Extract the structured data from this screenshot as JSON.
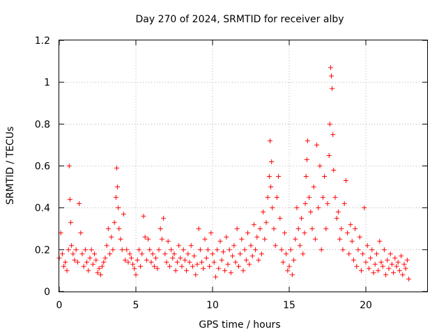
{
  "chart_data": {
    "type": "scatter",
    "title": "Day 270 of 2024, SRMTID for receiver alby",
    "xlabel": "GPS time / hours",
    "ylabel": "SRMTID / TECUs",
    "xlim": [
      0,
      24
    ],
    "ylim": [
      0,
      1.2
    ],
    "xticks": [
      0,
      5,
      10,
      15,
      20
    ],
    "xtick_labels": [
      "0",
      "5",
      "10",
      "15",
      "20"
    ],
    "yticks": [
      0,
      0.2,
      0.4,
      0.6,
      0.8,
      1.0,
      1.2
    ],
    "ytick_labels": [
      "0",
      "0.2",
      "0.4",
      "0.6",
      "0.8",
      "1",
      "1.2"
    ],
    "grid": true,
    "marker": "plus",
    "series": [
      {
        "name": "SRMTID",
        "color": "#ff0000",
        "x": [
          0.0,
          0.1,
          0.2,
          0.3,
          0.4,
          0.5,
          0.6,
          0.65,
          0.7,
          0.75,
          0.8,
          0.9,
          1.0,
          1.1,
          1.2,
          1.3,
          1.4,
          1.5,
          1.6,
          1.7,
          1.8,
          1.9,
          2.0,
          2.1,
          2.2,
          2.3,
          2.4,
          2.5,
          2.6,
          2.7,
          2.8,
          2.9,
          3.0,
          3.1,
          3.2,
          3.3,
          3.4,
          3.5,
          3.6,
          3.7,
          3.75,
          3.8,
          3.85,
          3.9,
          4.0,
          4.1,
          4.2,
          4.3,
          4.4,
          4.5,
          4.6,
          4.7,
          4.8,
          4.9,
          5.0,
          5.1,
          5.2,
          5.3,
          5.4,
          5.5,
          5.6,
          5.7,
          5.8,
          5.9,
          6.0,
          6.1,
          6.2,
          6.3,
          6.4,
          6.5,
          6.6,
          6.7,
          6.8,
          6.9,
          7.0,
          7.1,
          7.2,
          7.3,
          7.4,
          7.5,
          7.6,
          7.7,
          7.8,
          7.9,
          8.0,
          8.1,
          8.2,
          8.3,
          8.4,
          8.5,
          8.6,
          8.7,
          8.8,
          8.9,
          9.0,
          9.1,
          9.2,
          9.3,
          9.4,
          9.5,
          9.6,
          9.7,
          9.8,
          9.9,
          10.0,
          10.1,
          10.2,
          10.3,
          10.4,
          10.5,
          10.6,
          10.7,
          10.8,
          10.9,
          11.0,
          11.1,
          11.2,
          11.3,
          11.4,
          11.5,
          11.6,
          11.7,
          11.8,
          11.9,
          12.0,
          12.1,
          12.2,
          12.3,
          12.4,
          12.5,
          12.6,
          12.7,
          12.8,
          12.9,
          13.0,
          13.1,
          13.2,
          13.3,
          13.4,
          13.5,
          13.6,
          13.7,
          13.75,
          13.8,
          13.85,
          13.9,
          14.0,
          14.1,
          14.2,
          14.3,
          14.4,
          14.5,
          14.6,
          14.7,
          14.8,
          14.9,
          15.0,
          15.1,
          15.2,
          15.3,
          15.4,
          15.5,
          15.6,
          15.7,
          15.8,
          15.9,
          16.0,
          16.05,
          16.1,
          16.15,
          16.2,
          16.3,
          16.4,
          16.5,
          16.6,
          16.7,
          16.8,
          16.9,
          17.0,
          17.1,
          17.2,
          17.3,
          17.4,
          17.5,
          17.6,
          17.65,
          17.7,
          17.75,
          17.8,
          17.85,
          17.9,
          18.0,
          18.1,
          18.2,
          18.3,
          18.4,
          18.5,
          18.6,
          18.7,
          18.8,
          18.9,
          19.0,
          19.1,
          19.2,
          19.3,
          19.4,
          19.5,
          19.6,
          19.7,
          19.8,
          19.9,
          20.0,
          20.1,
          20.2,
          20.3,
          20.4,
          20.5,
          20.6,
          20.7,
          20.8,
          20.9,
          21.0,
          21.1,
          21.2,
          21.3,
          21.4,
          21.5,
          21.6,
          21.7,
          21.8,
          21.9,
          22.0,
          22.1,
          22.2,
          22.3,
          22.4,
          22.5,
          22.6,
          22.7,
          22.8
        ],
        "y": [
          0.16,
          0.28,
          0.18,
          0.12,
          0.14,
          0.1,
          0.2,
          0.6,
          0.44,
          0.33,
          0.22,
          0.18,
          0.15,
          0.2,
          0.14,
          0.42,
          0.28,
          0.18,
          0.12,
          0.2,
          0.14,
          0.1,
          0.16,
          0.2,
          0.13,
          0.18,
          0.15,
          0.09,
          0.11,
          0.08,
          0.12,
          0.14,
          0.16,
          0.22,
          0.3,
          0.18,
          0.26,
          0.2,
          0.33,
          0.45,
          0.59,
          0.5,
          0.4,
          0.3,
          0.25,
          0.2,
          0.37,
          0.15,
          0.2,
          0.14,
          0.18,
          0.16,
          0.13,
          0.11,
          0.08,
          0.15,
          0.2,
          0.12,
          0.18,
          0.36,
          0.26,
          0.15,
          0.25,
          0.2,
          0.14,
          0.18,
          0.12,
          0.16,
          0.11,
          0.2,
          0.3,
          0.25,
          0.35,
          0.18,
          0.14,
          0.24,
          0.12,
          0.2,
          0.16,
          0.18,
          0.1,
          0.14,
          0.22,
          0.16,
          0.12,
          0.2,
          0.15,
          0.1,
          0.18,
          0.14,
          0.22,
          0.12,
          0.17,
          0.08,
          0.13,
          0.3,
          0.2,
          0.14,
          0.11,
          0.25,
          0.16,
          0.2,
          0.12,
          0.28,
          0.18,
          0.14,
          0.07,
          0.2,
          0.11,
          0.24,
          0.15,
          0.19,
          0.1,
          0.26,
          0.13,
          0.2,
          0.09,
          0.17,
          0.22,
          0.14,
          0.3,
          0.12,
          0.18,
          0.25,
          0.1,
          0.2,
          0.15,
          0.28,
          0.13,
          0.22,
          0.17,
          0.32,
          0.2,
          0.26,
          0.15,
          0.3,
          0.18,
          0.38,
          0.25,
          0.33,
          0.45,
          0.55,
          0.72,
          0.5,
          0.62,
          0.4,
          0.3,
          0.22,
          0.45,
          0.55,
          0.35,
          0.2,
          0.14,
          0.28,
          0.18,
          0.1,
          0.12,
          0.2,
          0.08,
          0.15,
          0.25,
          0.4,
          0.3,
          0.22,
          0.35,
          0.18,
          0.28,
          0.42,
          0.55,
          0.63,
          0.72,
          0.45,
          0.38,
          0.3,
          0.5,
          0.25,
          0.7,
          0.4,
          0.6,
          0.2,
          0.45,
          0.55,
          0.3,
          0.42,
          0.65,
          0.8,
          1.07,
          1.03,
          0.97,
          0.75,
          0.58,
          0.45,
          0.35,
          0.38,
          0.25,
          0.3,
          0.2,
          0.42,
          0.53,
          0.28,
          0.18,
          0.32,
          0.24,
          0.15,
          0.3,
          0.12,
          0.2,
          0.26,
          0.1,
          0.18,
          0.4,
          0.14,
          0.22,
          0.11,
          0.16,
          0.2,
          0.09,
          0.13,
          0.18,
          0.1,
          0.24,
          0.14,
          0.12,
          0.2,
          0.08,
          0.15,
          0.11,
          0.18,
          0.13,
          0.09,
          0.16,
          0.12,
          0.14,
          0.1,
          0.17,
          0.08,
          0.13,
          0.11,
          0.15,
          0.06
        ]
      }
    ]
  }
}
